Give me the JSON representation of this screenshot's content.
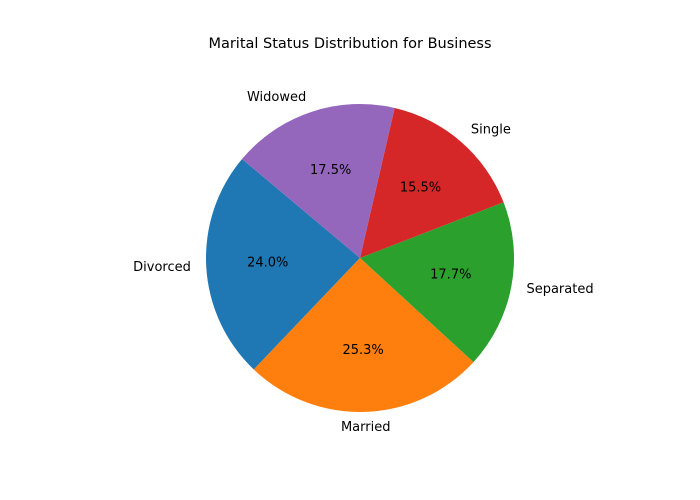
{
  "chart_data": {
    "type": "pie",
    "title": "Marital Status Distribution for Business",
    "labels": [
      "Divorced",
      "Married",
      "Separated",
      "Single",
      "Widowed"
    ],
    "values": [
      24.0,
      25.3,
      17.7,
      15.5,
      17.5
    ],
    "value_labels": [
      "24.0%",
      "25.3%",
      "17.7%",
      "15.5%",
      "17.5%"
    ],
    "colors": [
      "#1f77b4",
      "#ff7f0e",
      "#2ca02c",
      "#d62728",
      "#9467bd"
    ],
    "start_angle_deg": 140,
    "direction": "counterclockwise",
    "legend": "none"
  }
}
